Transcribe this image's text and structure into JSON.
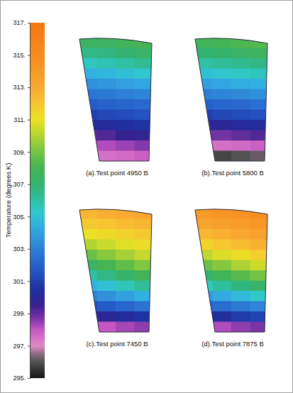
{
  "chart_data": {
    "type": "heatmap",
    "colorbar": {
      "label": "Temperature (degrees K)",
      "range": [
        295,
        317
      ],
      "ticks": [
        {
          "value": 295,
          "label": "295."
        },
        {
          "value": 297,
          "label": "297."
        },
        {
          "value": 299,
          "label": "299."
        },
        {
          "value": 301,
          "label": "301."
        },
        {
          "value": 303,
          "label": "303."
        },
        {
          "value": 305,
          "label": "305."
        },
        {
          "value": 307,
          "label": "307."
        },
        {
          "value": 309,
          "label": "309."
        },
        {
          "value": 311,
          "label": "311."
        },
        {
          "value": 313,
          "label": "313."
        },
        {
          "value": 315,
          "label": "315."
        },
        {
          "value": 317,
          "label": "317."
        }
      ]
    },
    "panels": [
      {
        "caption": "(a).Test point 4950 B",
        "cells": [
          [
            307.5,
            307.5,
            307.8,
            308
          ],
          [
            306.5,
            306.7,
            307,
            307.3
          ],
          [
            305.5,
            305.7,
            306,
            306.3
          ],
          [
            304.5,
            304.7,
            305,
            305.2
          ],
          [
            303.5,
            303.7,
            304,
            304.2
          ],
          [
            302.7,
            302.8,
            303,
            303.2
          ],
          [
            301.8,
            302,
            302.2,
            302.3
          ],
          [
            301,
            301.2,
            301.3,
            301.5
          ],
          [
            300,
            300.3,
            300.5,
            300.6
          ],
          [
            299,
            299.2,
            299.5,
            299.7
          ],
          [
            298,
            298.2,
            298.4,
            298.6
          ],
          [
            297.3,
            297.5,
            297.6,
            297.8
          ]
        ]
      },
      {
        "caption": "(b).Test point 5800 B",
        "cells": [
          [
            307.8,
            308,
            308.2,
            308.3
          ],
          [
            307,
            307.2,
            307.4,
            307.6
          ],
          [
            306,
            306.2,
            306.4,
            306.6
          ],
          [
            305,
            305.2,
            305.4,
            305.6
          ],
          [
            304,
            304.2,
            304.4,
            304.5
          ],
          [
            303,
            303.2,
            303.3,
            303.5
          ],
          [
            302,
            302.2,
            302.3,
            302.5
          ],
          [
            301,
            301.2,
            301.3,
            301.4
          ],
          [
            300,
            300,
            300.2,
            300.3
          ],
          [
            298.8,
            298.8,
            299,
            299.2
          ],
          [
            297.3,
            297.5,
            297.6,
            297.8
          ],
          [
            296,
            295.8,
            296,
            296.2
          ]
        ]
      },
      {
        "caption": "(c).Test point 7450 B",
        "cells": [
          [
            312.5,
            312.8,
            313,
            313.2
          ],
          [
            311.8,
            312,
            312.3,
            312.5
          ],
          [
            311,
            311.3,
            311.6,
            311.8
          ],
          [
            310,
            310.4,
            310.8,
            311.2
          ],
          [
            308.8,
            309.3,
            309.8,
            310.3
          ],
          [
            307.5,
            308,
            308.6,
            309.2
          ],
          [
            306,
            306.6,
            307.2,
            307.8
          ],
          [
            304.5,
            305,
            305.6,
            306.2
          ],
          [
            303,
            303.5,
            304,
            304.5
          ],
          [
            301.3,
            301.8,
            302.2,
            302.6
          ],
          [
            299.5,
            300,
            300.3,
            300.6
          ],
          [
            297.8,
            298,
            298.3,
            298.5
          ]
        ]
      },
      {
        "caption": "(d).Test point 7875 B",
        "cells": [
          [
            314,
            314.3,
            314.5,
            314.7
          ],
          [
            313.3,
            313.6,
            313.9,
            314.2
          ],
          [
            312.5,
            312.8,
            313.2,
            313.5
          ],
          [
            311.5,
            311.9,
            312.3,
            312.7
          ],
          [
            310.2,
            310.7,
            311.2,
            311.7
          ],
          [
            308.8,
            309.3,
            309.9,
            310.5
          ],
          [
            307.2,
            307.8,
            308.4,
            309
          ],
          [
            305.5,
            306.1,
            306.7,
            307.3
          ],
          [
            303.8,
            304.3,
            304.8,
            305.3
          ],
          [
            302,
            302.4,
            302.8,
            303.2
          ],
          [
            300,
            300.4,
            300.8,
            301.1
          ],
          [
            298,
            298.2,
            298.5,
            298.7
          ]
        ]
      }
    ]
  }
}
